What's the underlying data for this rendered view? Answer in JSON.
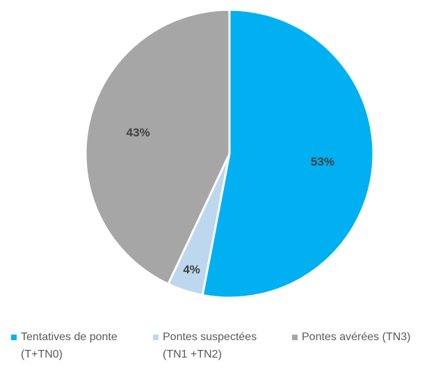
{
  "chart_data": {
    "type": "pie",
    "categories": [
      "Tentatives de ponte (T+TN0)",
      "Pontes suspectées (TN1 +TN2)",
      "Pontes avérées (TN3)"
    ],
    "values": [
      53,
      4,
      43
    ],
    "value_labels": [
      "53%",
      "4%",
      "43%"
    ],
    "colors": [
      "#00b0f0",
      "#bdd7ee",
      "#a6a6a6"
    ],
    "legend": "bottom"
  }
}
